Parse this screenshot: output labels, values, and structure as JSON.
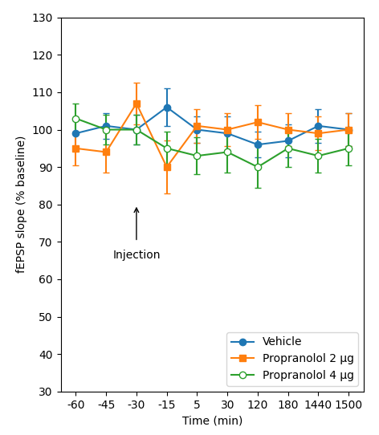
{
  "chart_data": {
    "type": "line",
    "xlabel": "Time (min)",
    "ylabel": "fEPSP slope (% baseline)",
    "categories": [
      "-60",
      "-45",
      "-30",
      "-15",
      "5",
      "30",
      "120",
      "180",
      "1440",
      "1500"
    ],
    "series": [
      {
        "name": "Vehicle",
        "marker": "circle",
        "line_style": "solid",
        "values": [
          99,
          101,
          100,
          106,
          100,
          99,
          96,
          97,
          101,
          100
        ],
        "errors": [
          3.5,
          3.5,
          4,
          5,
          3.5,
          4.5,
          3.5,
          4.5,
          4.5,
          4.5
        ]
      },
      {
        "name": "Propranolol 2 μg",
        "marker": "square",
        "line_style": "solid",
        "values": [
          95,
          94,
          107,
          90,
          101,
          100,
          102,
          100,
          99,
          100
        ],
        "errors": [
          4.5,
          5.5,
          5.5,
          7,
          4.5,
          4.5,
          4.5,
          4.5,
          4.5,
          4.5
        ]
      },
      {
        "name": "Propranolol 4 μg",
        "marker": "open_circle",
        "line_style": "solid",
        "values": [
          103,
          100,
          100,
          95,
          93,
          94,
          90,
          95,
          93,
          95
        ],
        "errors": [
          4,
          4,
          4,
          4.5,
          5,
          5.5,
          5.5,
          5,
          4.5,
          4.5
        ]
      }
    ],
    "ylim": [
      30,
      130
    ],
    "yticks": [
      30,
      40,
      50,
      60,
      70,
      80,
      90,
      100,
      110,
      120,
      130
    ],
    "annotations": [
      {
        "text": "Injection",
        "x": "-30"
      }
    ],
    "legend": "lower right"
  }
}
